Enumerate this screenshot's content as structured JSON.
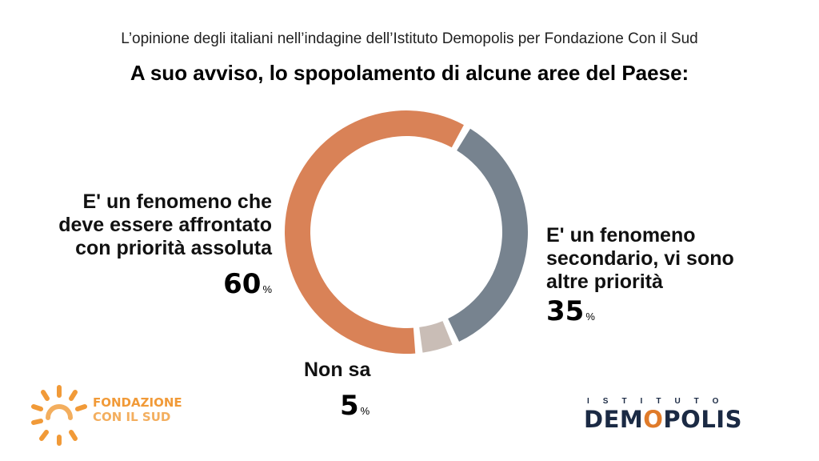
{
  "header": {
    "subtitle": "L’opinione degli italiani nell’indagine dell’Istituto Demopolis per Fondazione Con il Sud",
    "title": "A suo avviso, lo spopolamento di alcune aree del Paese:"
  },
  "chart_data": {
    "type": "pie",
    "title": "A suo avviso, lo spopolamento di alcune aree del Paese:",
    "subtitle": "L’opinione degli italiani nell’indagine dell’Istituto Demopolis per Fondazione Con il Sud",
    "unit": "%",
    "slices": [
      {
        "label": [
          "E' un fenomeno che",
          "deve essere affrontato",
          "con priorità assoluta"
        ],
        "value": 60,
        "color": "#d98257"
      },
      {
        "label": [
          "E' un fenomeno",
          "secondario, vi sono",
          "altre priorità"
        ],
        "value": 35,
        "color": "#77838f"
      },
      {
        "label": [
          "Non sa"
        ],
        "value": 5,
        "color": "#c9bdb6"
      }
    ]
  },
  "logos": {
    "fondazione": {
      "line1": "FONDAZIONE",
      "line2": "CON IL SUD",
      "color": "#f19a38"
    },
    "demopolis": {
      "top": "ISTITUTO",
      "main_a": "DEM",
      "main_o": "O",
      "main_b": "POLIS",
      "color": "#1b2a44",
      "accent": "#e07b2a"
    }
  }
}
